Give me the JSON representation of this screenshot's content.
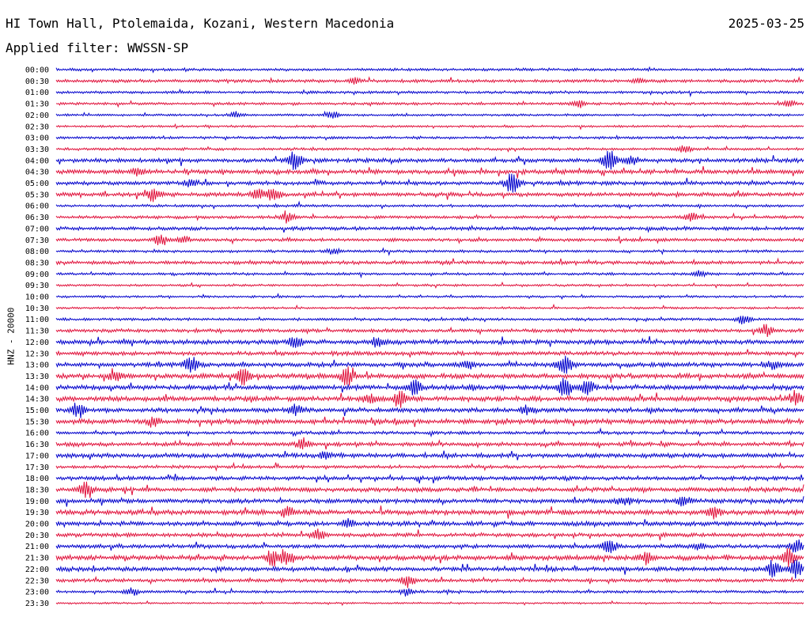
{
  "header": {
    "title": "HI Town Hall, Ptolemaida, Kozani, Western Macedonia",
    "date": "2025-03-25",
    "filter": "Applied filter: WWSSN-SP"
  },
  "chart_data": {
    "type": "line",
    "title": "HI Town Hall, Ptolemaida, Kozani, Western Macedonia",
    "ylabel": "HNZ - 20000",
    "xlabel": "",
    "colors": [
      "#0000cc",
      "#e0103a"
    ],
    "rows": [
      {
        "label": "00:00",
        "level": 0.12,
        "events": []
      },
      {
        "label": "00:30",
        "level": 0.14,
        "events": [
          {
            "pos": 0.4,
            "amp": 0.3
          },
          {
            "pos": 0.78,
            "amp": 0.3
          }
        ]
      },
      {
        "label": "01:00",
        "level": 0.12,
        "events": []
      },
      {
        "label": "01:30",
        "level": 0.12,
        "events": [
          {
            "pos": 0.7,
            "amp": 0.4
          },
          {
            "pos": 0.98,
            "amp": 0.3
          }
        ]
      },
      {
        "label": "02:00",
        "level": 0.1,
        "events": [
          {
            "pos": 0.24,
            "amp": 0.3
          },
          {
            "pos": 0.37,
            "amp": 0.35
          }
        ]
      },
      {
        "label": "02:30",
        "level": 0.1,
        "events": []
      },
      {
        "label": "03:00",
        "level": 0.12,
        "events": []
      },
      {
        "label": "03:30",
        "level": 0.12,
        "events": [
          {
            "pos": 0.84,
            "amp": 0.4
          }
        ]
      },
      {
        "label": "04:00",
        "level": 0.18,
        "events": [
          {
            "pos": 0.32,
            "amp": 1.0
          },
          {
            "pos": 0.74,
            "amp": 1.2
          },
          {
            "pos": 0.77,
            "amp": 0.6
          }
        ]
      },
      {
        "label": "04:30",
        "level": 0.2,
        "events": [
          {
            "pos": 0.11,
            "amp": 0.4
          }
        ]
      },
      {
        "label": "05:00",
        "level": 0.18,
        "events": [
          {
            "pos": 0.18,
            "amp": 0.4
          },
          {
            "pos": 0.61,
            "amp": 1.2
          }
        ]
      },
      {
        "label": "05:30",
        "level": 0.18,
        "events": [
          {
            "pos": 0.13,
            "amp": 0.8
          },
          {
            "pos": 0.27,
            "amp": 0.6
          },
          {
            "pos": 0.29,
            "amp": 0.7
          }
        ]
      },
      {
        "label": "06:00",
        "level": 0.12,
        "events": []
      },
      {
        "label": "06:30",
        "level": 0.14,
        "events": [
          {
            "pos": 0.31,
            "amp": 0.6
          },
          {
            "pos": 0.85,
            "amp": 0.5
          }
        ]
      },
      {
        "label": "07:00",
        "level": 0.16,
        "events": []
      },
      {
        "label": "07:30",
        "level": 0.14,
        "events": [
          {
            "pos": 0.14,
            "amp": 0.7
          },
          {
            "pos": 0.17,
            "amp": 0.4
          }
        ]
      },
      {
        "label": "08:00",
        "level": 0.12,
        "events": [
          {
            "pos": 0.37,
            "amp": 0.3
          }
        ]
      },
      {
        "label": "08:30",
        "level": 0.16,
        "events": []
      },
      {
        "label": "09:00",
        "level": 0.12,
        "events": [
          {
            "pos": 0.86,
            "amp": 0.3
          }
        ]
      },
      {
        "label": "09:30",
        "level": 0.1,
        "events": []
      },
      {
        "label": "10:00",
        "level": 0.1,
        "events": []
      },
      {
        "label": "10:30",
        "level": 0.1,
        "events": []
      },
      {
        "label": "11:00",
        "level": 0.12,
        "events": [
          {
            "pos": 0.92,
            "amp": 0.5
          }
        ]
      },
      {
        "label": "11:30",
        "level": 0.16,
        "events": [
          {
            "pos": 0.95,
            "amp": 0.6
          }
        ]
      },
      {
        "label": "12:00",
        "level": 0.2,
        "events": [
          {
            "pos": 0.32,
            "amp": 0.7
          },
          {
            "pos": 0.43,
            "amp": 0.5
          }
        ]
      },
      {
        "label": "12:30",
        "level": 0.18,
        "events": []
      },
      {
        "label": "13:00",
        "level": 0.2,
        "events": [
          {
            "pos": 0.18,
            "amp": 0.9
          },
          {
            "pos": 0.55,
            "amp": 0.5
          },
          {
            "pos": 0.68,
            "amp": 1.0
          },
          {
            "pos": 0.96,
            "amp": 0.5
          }
        ]
      },
      {
        "label": "13:30",
        "level": 0.22,
        "events": [
          {
            "pos": 0.08,
            "amp": 0.5
          },
          {
            "pos": 0.25,
            "amp": 1.2
          },
          {
            "pos": 0.39,
            "amp": 1.1
          }
        ]
      },
      {
        "label": "14:00",
        "level": 0.22,
        "events": [
          {
            "pos": 0.48,
            "amp": 0.8
          },
          {
            "pos": 0.68,
            "amp": 0.9
          },
          {
            "pos": 0.71,
            "amp": 0.8
          }
        ]
      },
      {
        "label": "14:30",
        "level": 0.22,
        "events": [
          {
            "pos": 0.42,
            "amp": 0.5
          },
          {
            "pos": 0.46,
            "amp": 0.9
          },
          {
            "pos": 0.99,
            "amp": 0.7
          }
        ]
      },
      {
        "label": "15:00",
        "level": 0.2,
        "events": [
          {
            "pos": 0.03,
            "amp": 0.8
          },
          {
            "pos": 0.32,
            "amp": 0.6
          },
          {
            "pos": 0.63,
            "amp": 0.5
          }
        ]
      },
      {
        "label": "15:30",
        "level": 0.22,
        "events": [
          {
            "pos": 0.13,
            "amp": 0.6
          }
        ]
      },
      {
        "label": "16:00",
        "level": 0.14,
        "events": []
      },
      {
        "label": "16:30",
        "level": 0.18,
        "events": [
          {
            "pos": 0.33,
            "amp": 0.5
          }
        ]
      },
      {
        "label": "17:00",
        "level": 0.2,
        "events": [
          {
            "pos": 0.36,
            "amp": 0.4
          }
        ]
      },
      {
        "label": "17:30",
        "level": 0.14,
        "events": []
      },
      {
        "label": "18:00",
        "level": 0.18,
        "events": []
      },
      {
        "label": "18:30",
        "level": 0.2,
        "events": [
          {
            "pos": 0.04,
            "amp": 0.9
          }
        ]
      },
      {
        "label": "19:00",
        "level": 0.2,
        "events": [
          {
            "pos": 0.76,
            "amp": 0.5
          },
          {
            "pos": 0.84,
            "amp": 0.5
          }
        ]
      },
      {
        "label": "19:30",
        "level": 0.22,
        "events": [
          {
            "pos": 0.31,
            "amp": 0.6
          },
          {
            "pos": 0.88,
            "amp": 0.5
          }
        ]
      },
      {
        "label": "20:00",
        "level": 0.2,
        "events": [
          {
            "pos": 0.39,
            "amp": 0.4
          }
        ]
      },
      {
        "label": "20:30",
        "level": 0.18,
        "events": [
          {
            "pos": 0.35,
            "amp": 0.6
          }
        ]
      },
      {
        "label": "21:00",
        "level": 0.18,
        "events": [
          {
            "pos": 0.74,
            "amp": 0.8
          },
          {
            "pos": 0.86,
            "amp": 0.4
          },
          {
            "pos": 0.99,
            "amp": 0.6
          }
        ]
      },
      {
        "label": "21:30",
        "level": 0.22,
        "events": [
          {
            "pos": 0.29,
            "amp": 0.8
          },
          {
            "pos": 0.31,
            "amp": 0.7
          },
          {
            "pos": 0.79,
            "amp": 0.5
          },
          {
            "pos": 0.98,
            "amp": 1.0
          }
        ]
      },
      {
        "label": "22:00",
        "level": 0.2,
        "events": [
          {
            "pos": 0.96,
            "amp": 0.9
          },
          {
            "pos": 0.99,
            "amp": 1.0
          }
        ]
      },
      {
        "label": "22:30",
        "level": 0.16,
        "events": [
          {
            "pos": 0.47,
            "amp": 0.6
          }
        ]
      },
      {
        "label": "23:00",
        "level": 0.12,
        "events": [
          {
            "pos": 0.1,
            "amp": 0.4
          },
          {
            "pos": 0.47,
            "amp": 0.4
          }
        ]
      },
      {
        "label": "23:30",
        "level": 0.08,
        "events": []
      }
    ]
  }
}
